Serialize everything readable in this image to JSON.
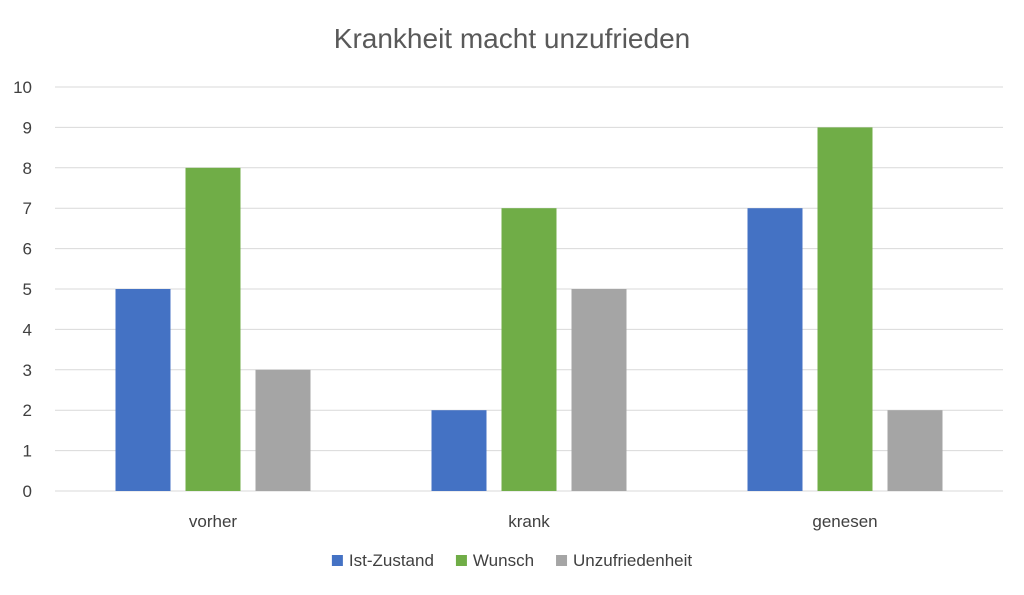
{
  "chart_data": {
    "type": "bar",
    "title": "Krankheit macht unzufrieden",
    "categories": [
      "vorher",
      "krank",
      "genesen"
    ],
    "series": [
      {
        "name": "Ist-Zustand",
        "values": [
          5,
          2,
          7
        ],
        "color": "#4472c4"
      },
      {
        "name": "Wunsch",
        "values": [
          8,
          7,
          9
        ],
        "color": "#70ad47"
      },
      {
        "name": "Unzufriedenheit",
        "values": [
          3,
          5,
          2
        ],
        "color": "#a5a5a5"
      }
    ],
    "ylim": [
      0,
      10
    ],
    "yticks": [
      "0",
      "1",
      "2",
      "3",
      "4",
      "5",
      "6",
      "7",
      "8",
      "9",
      "10"
    ],
    "grid": true,
    "legend_position": "bottom"
  }
}
